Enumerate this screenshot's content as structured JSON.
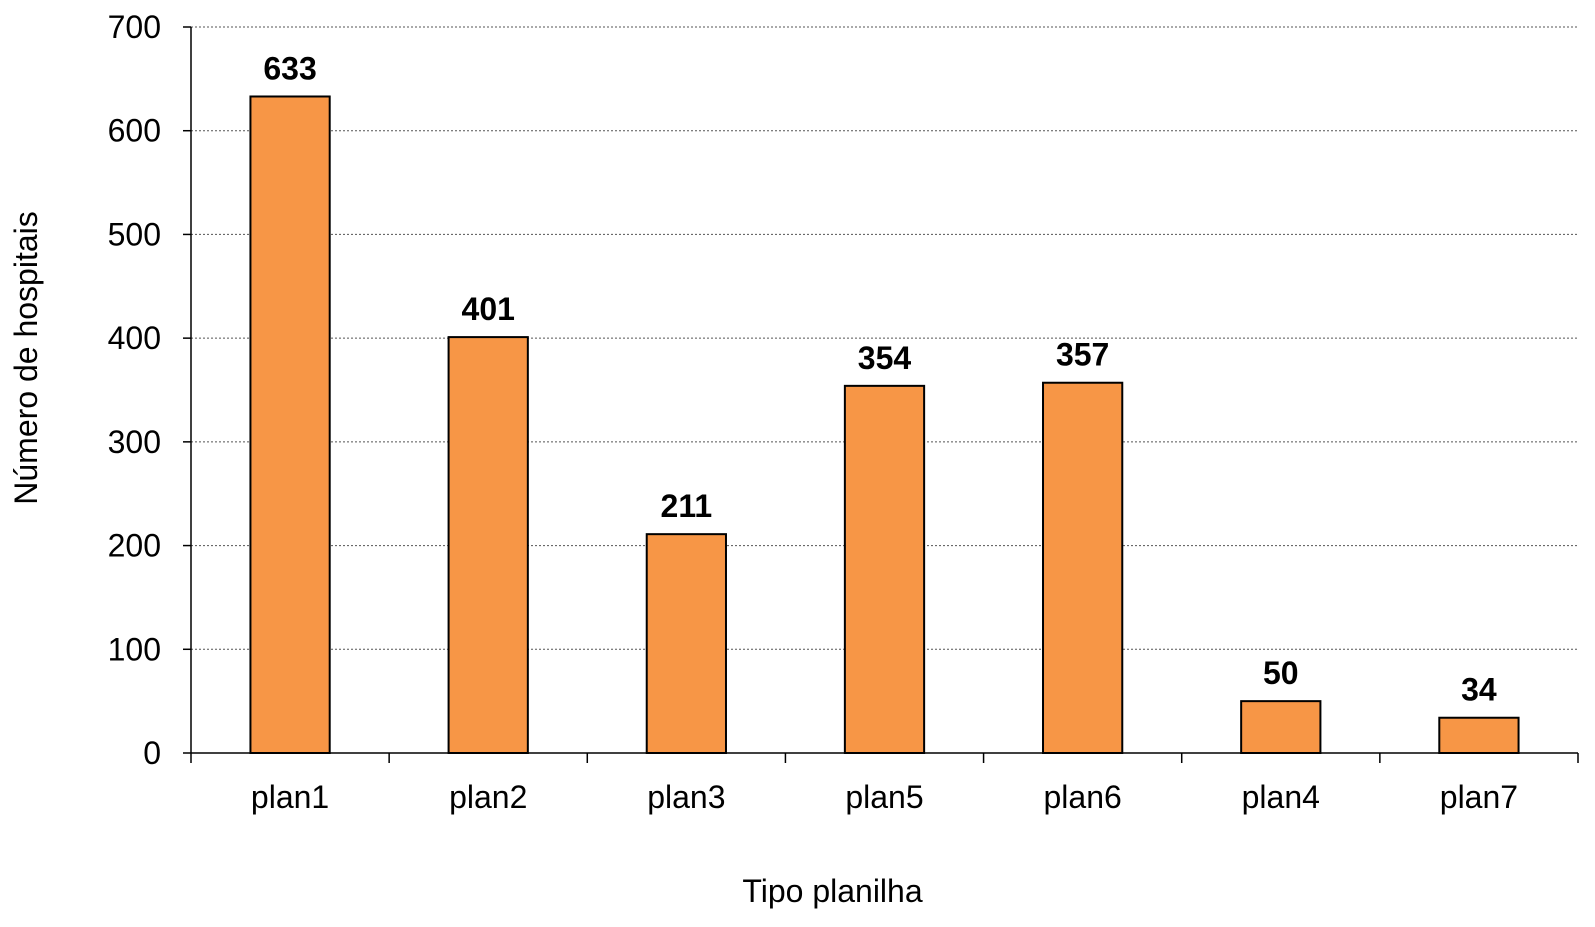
{
  "chart_data": {
    "type": "bar",
    "categories": [
      "plan1",
      "plan2",
      "plan3",
      "plan5",
      "plan6",
      "plan4",
      "plan7"
    ],
    "values": [
      633,
      401,
      211,
      354,
      357,
      50,
      34
    ],
    "data_labels": [
      "633",
      "401",
      "211",
      "354",
      "357",
      "50",
      "34"
    ],
    "title": "",
    "xlabel": "Tipo planilha",
    "ylabel": "Número de hospitais",
    "ylim": [
      0,
      700
    ],
    "yticks": [
      0,
      100,
      200,
      300,
      400,
      500,
      600,
      700
    ],
    "grid": true,
    "legend": "none",
    "bar_color": "#f79646",
    "bar_edge_color": "#000000"
  }
}
